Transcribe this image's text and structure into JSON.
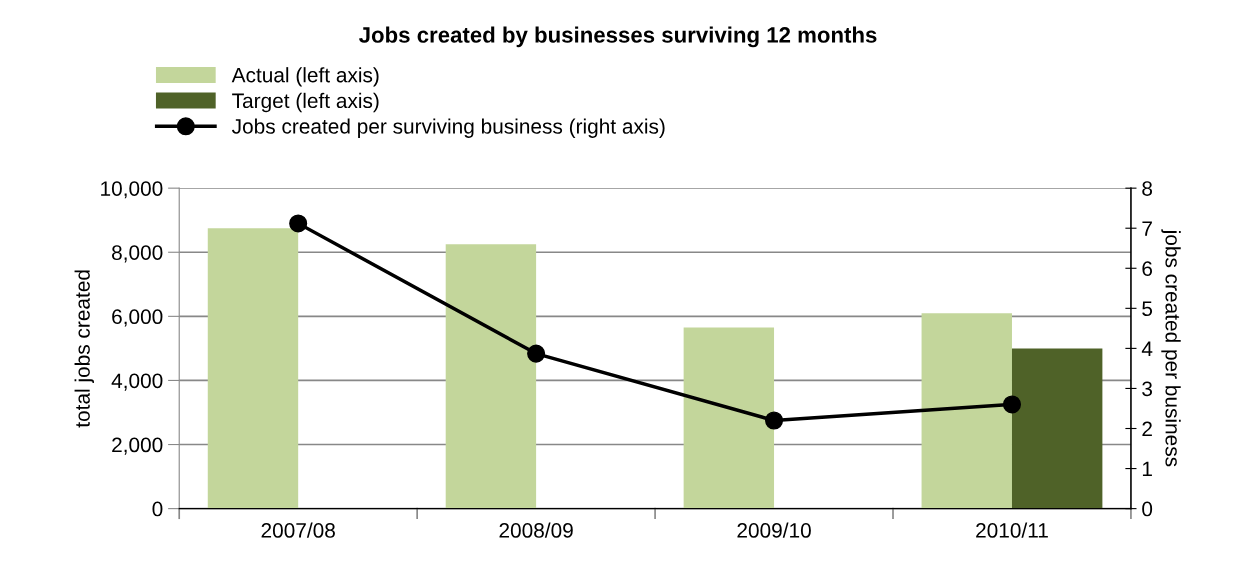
{
  "chart_data": {
    "type": "bar",
    "title": "Jobs created by businesses surviving 12 months",
    "categories": [
      "2007/08",
      "2008/09",
      "2009/10",
      "2010/11"
    ],
    "series": [
      {
        "name": "Actual (left axis)",
        "color": "#c3d69b",
        "values": [
          8750,
          8250,
          5650,
          6100
        ]
      },
      {
        "name": "Target (left axis)",
        "color": "#4f6228",
        "values": [
          null,
          null,
          null,
          5000
        ]
      },
      {
        "name": "Jobs created per surviving business (right axis)",
        "type": "line",
        "axis": "y2",
        "color": "#000000",
        "marker": "circle",
        "values": [
          7.12,
          3.87,
          2.2,
          2.6
        ]
      }
    ],
    "ylabel": "total jobs created",
    "y2label": "jobs created per business",
    "ylim": [
      0,
      10000
    ],
    "yticks": [
      {
        "value": 0,
        "label": "0"
      },
      {
        "value": 2000,
        "label": "2,000"
      },
      {
        "value": 4000,
        "label": "4,000"
      },
      {
        "value": 6000,
        "label": "6,000"
      },
      {
        "value": 8000,
        "label": "8,000"
      },
      {
        "value": 10000,
        "label": "10,000"
      }
    ],
    "y2lim": [
      0,
      8
    ],
    "y2ticks": [
      0,
      1,
      2,
      3,
      4,
      5,
      6,
      7,
      8
    ],
    "grid": "y",
    "legend": "top left"
  }
}
